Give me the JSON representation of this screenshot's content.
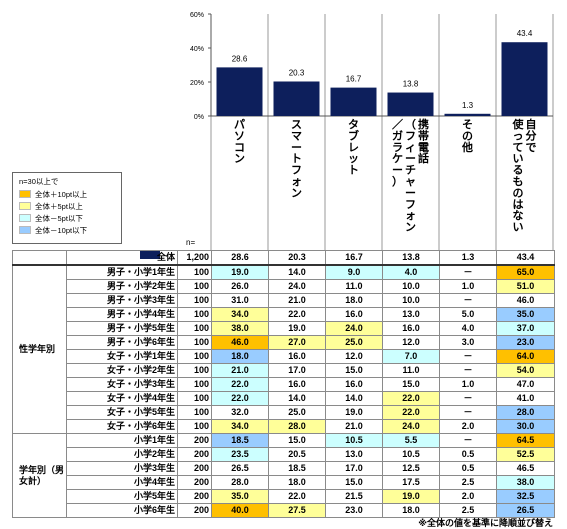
{
  "chart_data": {
    "type": "bar",
    "categories": [
      "パソコン",
      "スマートフォン",
      "タブレット",
      "携帯電話（フィーチャーフォン／ガラケー）",
      "その他",
      "使っているものはない"
    ],
    "category_lines": [
      [
        "パソコン"
      ],
      [
        "スマートフォン"
      ],
      [
        "タブレット"
      ],
      [
        "携帯電話",
        "（フィーチャーフォン",
        "／ガラケー）"
      ],
      [
        "その他"
      ],
      [
        "自分で",
        "使っているものはない"
      ]
    ],
    "values": [
      28.6,
      20.3,
      16.7,
      13.8,
      1.3,
      43.4
    ],
    "value_labels": [
      "28.6",
      "20.3",
      "16.7",
      "13.8",
      "1.3",
      "43.4"
    ],
    "ylim": [
      0,
      60
    ],
    "yticks": [
      "0%",
      "20%",
      "40%",
      "60%"
    ],
    "bar_color": "#0d1f5c",
    "total_row": {
      "label": "全体",
      "n": "1,200",
      "values": [
        "28.6",
        "20.3",
        "16.7",
        "13.8",
        "1.3",
        "43.4"
      ]
    },
    "groups": [
      {
        "label": "性学年別",
        "rows": [
          {
            "label": "男子・小学1年生",
            "n": "100",
            "values": [
              "19.0",
              "14.0",
              "9.0",
              "4.0",
              "－",
              "65.0"
            ],
            "hl": [
              "lo1",
              "",
              "lo1",
              "lo1",
              "",
              "hl1"
            ]
          },
          {
            "label": "男子・小学2年生",
            "n": "100",
            "values": [
              "26.0",
              "24.0",
              "11.0",
              "10.0",
              "1.0",
              "51.0"
            ],
            "hl": [
              "",
              "",
              "",
              "",
              "",
              "hl2"
            ]
          },
          {
            "label": "男子・小学3年生",
            "n": "100",
            "values": [
              "31.0",
              "21.0",
              "18.0",
              "10.0",
              "－",
              "46.0"
            ],
            "hl": [
              "",
              "",
              "",
              "",
              "",
              ""
            ]
          },
          {
            "label": "男子・小学4年生",
            "n": "100",
            "values": [
              "34.0",
              "22.0",
              "16.0",
              "13.0",
              "5.0",
              "35.0"
            ],
            "hl": [
              "hl2",
              "",
              "",
              "",
              "",
              "lo2"
            ]
          },
          {
            "label": "男子・小学5年生",
            "n": "100",
            "values": [
              "38.0",
              "19.0",
              "24.0",
              "16.0",
              "4.0",
              "37.0"
            ],
            "hl": [
              "hl2",
              "",
              "hl2",
              "",
              "",
              "lo1"
            ]
          },
          {
            "label": "男子・小学6年生",
            "n": "100",
            "values": [
              "46.0",
              "27.0",
              "25.0",
              "12.0",
              "3.0",
              "23.0"
            ],
            "hl": [
              "hl1",
              "hl2",
              "hl2",
              "",
              "",
              "lo2"
            ]
          },
          {
            "label": "女子・小学1年生",
            "n": "100",
            "values": [
              "18.0",
              "16.0",
              "12.0",
              "7.0",
              "－",
              "64.0"
            ],
            "hl": [
              "lo2",
              "",
              "",
              "lo1",
              "",
              "hl1"
            ]
          },
          {
            "label": "女子・小学2年生",
            "n": "100",
            "values": [
              "21.0",
              "17.0",
              "15.0",
              "11.0",
              "－",
              "54.0"
            ],
            "hl": [
              "lo1",
              "",
              "",
              "",
              "",
              "hl2"
            ]
          },
          {
            "label": "女子・小学3年生",
            "n": "100",
            "values": [
              "22.0",
              "16.0",
              "16.0",
              "15.0",
              "1.0",
              "47.0"
            ],
            "hl": [
              "lo1",
              "",
              "",
              "",
              "",
              ""
            ]
          },
          {
            "label": "女子・小学4年生",
            "n": "100",
            "values": [
              "22.0",
              "14.0",
              "14.0",
              "22.0",
              "－",
              "41.0"
            ],
            "hl": [
              "lo1",
              "",
              "",
              "hl2",
              "",
              ""
            ]
          },
          {
            "label": "女子・小学5年生",
            "n": "100",
            "values": [
              "32.0",
              "25.0",
              "19.0",
              "22.0",
              "－",
              "28.0"
            ],
            "hl": [
              "",
              "",
              "",
              "hl2",
              "",
              "lo2"
            ]
          },
          {
            "label": "女子・小学6年生",
            "n": "100",
            "values": [
              "34.0",
              "28.0",
              "21.0",
              "24.0",
              "2.0",
              "30.0"
            ],
            "hl": [
              "hl2",
              "hl2",
              "",
              "hl2",
              "",
              "lo2"
            ]
          }
        ]
      },
      {
        "label": "学年別（男女計）",
        "rows": [
          {
            "label": "小学1年生",
            "n": "200",
            "values": [
              "18.5",
              "15.0",
              "10.5",
              "5.5",
              "－",
              "64.5"
            ],
            "hl": [
              "lo2",
              "",
              "lo1",
              "lo1",
              "",
              "hl1"
            ]
          },
          {
            "label": "小学2年生",
            "n": "200",
            "values": [
              "23.5",
              "20.5",
              "13.0",
              "10.5",
              "0.5",
              "52.5"
            ],
            "hl": [
              "lo1",
              "",
              "",
              "",
              "",
              "hl2"
            ]
          },
          {
            "label": "小学3年生",
            "n": "200",
            "values": [
              "26.5",
              "18.5",
              "17.0",
              "12.5",
              "0.5",
              "46.5"
            ],
            "hl": [
              "",
              "",
              "",
              "",
              "",
              ""
            ]
          },
          {
            "label": "小学4年生",
            "n": "200",
            "values": [
              "28.0",
              "18.0",
              "15.0",
              "17.5",
              "2.5",
              "38.0"
            ],
            "hl": [
              "",
              "",
              "",
              "",
              "",
              "lo1"
            ]
          },
          {
            "label": "小学5年生",
            "n": "200",
            "values": [
              "35.0",
              "22.0",
              "21.5",
              "19.0",
              "2.0",
              "32.5"
            ],
            "hl": [
              "hl2",
              "",
              "",
              "hl2",
              "",
              "lo2"
            ]
          },
          {
            "label": "小学6年生",
            "n": "200",
            "values": [
              "40.0",
              "27.5",
              "23.0",
              "18.0",
              "2.5",
              "26.5"
            ],
            "hl": [
              "hl1",
              "hl2",
              "",
              "",
              "",
              "lo2"
            ]
          }
        ]
      }
    ]
  },
  "legend": {
    "title": "n=30以上で",
    "items": [
      {
        "label": "全体＋10pt以上",
        "color": "#ffc000"
      },
      {
        "label": "全体＋5pt以上",
        "color": "#ffff99"
      },
      {
        "label": "全体－5pt以下",
        "color": "#ccffff"
      },
      {
        "label": "全体－10pt以下",
        "color": "#99ccff"
      }
    ]
  },
  "n_label": "n=",
  "footnote": "※全体の値を基準に降順並び替え"
}
